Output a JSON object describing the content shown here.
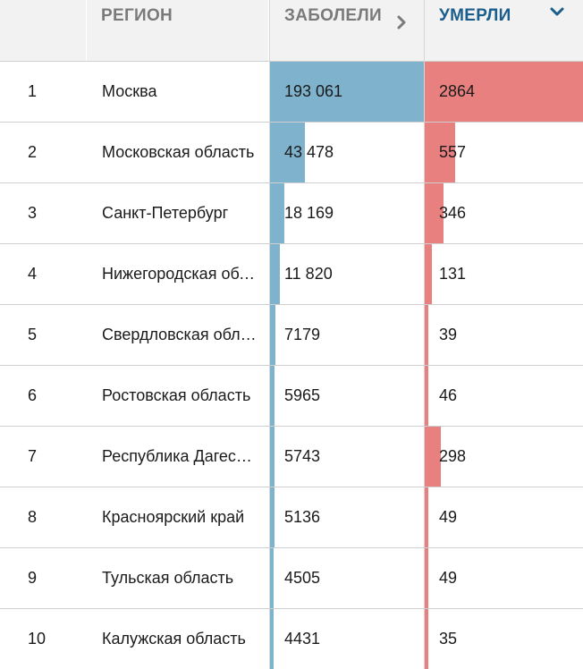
{
  "header": {
    "region": "РЕГИОН",
    "infected": "ЗАБОЛЕЛИ",
    "deaths": "УМЕРЛИ"
  },
  "colors": {
    "infected_bar": "#7fb2cc",
    "deaths_bar": "#e8807f",
    "sorted_header": "#1b5e8c"
  },
  "icons": {
    "infected_sort": "chevron-right-icon",
    "deaths_sort": "chevron-down-icon"
  },
  "max": {
    "infected": 193061,
    "deaths": 2864
  },
  "rows": [
    {
      "rank": "1",
      "region": "Москва",
      "infected": "193 061",
      "deaths": "2864",
      "inf_val": 193061,
      "dead_val": 2864
    },
    {
      "rank": "2",
      "region": "Московская область",
      "infected": "43 478",
      "deaths": "557",
      "inf_val": 43478,
      "dead_val": 557
    },
    {
      "rank": "3",
      "region": "Санкт-Петербург",
      "infected": "18 169",
      "deaths": "346",
      "inf_val": 18169,
      "dead_val": 346
    },
    {
      "rank": "4",
      "region": "Нижегородская область",
      "infected": "11 820",
      "deaths": "131",
      "inf_val": 11820,
      "dead_val": 131
    },
    {
      "rank": "5",
      "region": "Свердловская область",
      "infected": "7179",
      "deaths": "39",
      "inf_val": 7179,
      "dead_val": 39
    },
    {
      "rank": "6",
      "region": "Ростовская область",
      "infected": "5965",
      "deaths": "46",
      "inf_val": 5965,
      "dead_val": 46
    },
    {
      "rank": "7",
      "region": "Республика Дагестан",
      "infected": "5743",
      "deaths": "298",
      "inf_val": 5743,
      "dead_val": 298
    },
    {
      "rank": "8",
      "region": "Красноярский край",
      "infected": "5136",
      "deaths": "49",
      "inf_val": 5136,
      "dead_val": 49
    },
    {
      "rank": "9",
      "region": "Тульская область",
      "infected": "4505",
      "deaths": "49",
      "inf_val": 4505,
      "dead_val": 49
    },
    {
      "rank": "10",
      "region": "Калужская область",
      "infected": "4431",
      "deaths": "35",
      "inf_val": 4431,
      "dead_val": 35
    }
  ]
}
